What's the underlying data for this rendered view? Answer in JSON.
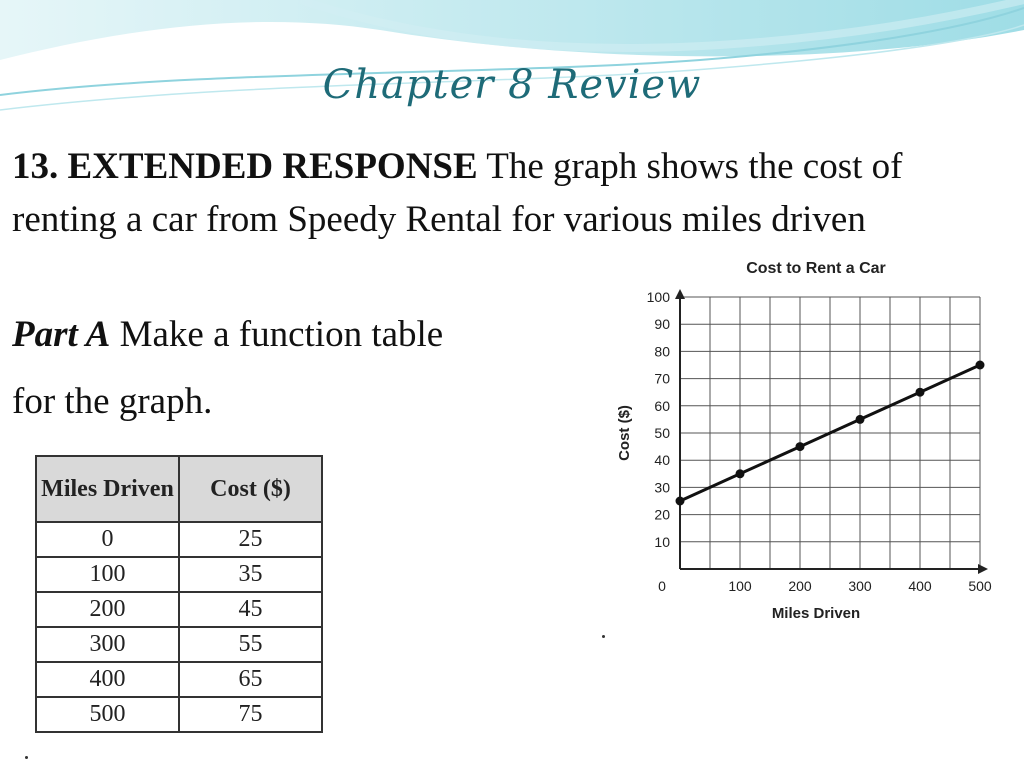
{
  "title": "Chapter 8 Review",
  "problem": {
    "number": "13.",
    "heading": "EXTENDED RESPONSE",
    "text": "The graph shows the cost of renting a car from Speedy Rental for various miles driven"
  },
  "part_a": {
    "label": "Part A",
    "line1": "Make a function table",
    "line2": "for the graph."
  },
  "table": {
    "headers": [
      "Miles Driven",
      "Cost ($)"
    ],
    "rows": [
      [
        "0",
        "25"
      ],
      [
        "100",
        "35"
      ],
      [
        "200",
        "45"
      ],
      [
        "300",
        "55"
      ],
      [
        "400",
        "65"
      ],
      [
        "500",
        "75"
      ]
    ]
  },
  "chart_data": {
    "type": "line",
    "title": "Cost to Rent a Car",
    "xlabel": "Miles Driven",
    "ylabel": "Cost ($)",
    "x": [
      0,
      100,
      200,
      300,
      400,
      500
    ],
    "y": [
      25,
      35,
      45,
      55,
      65,
      75
    ],
    "xlim": [
      0,
      500
    ],
    "ylim": [
      0,
      100
    ],
    "x_ticks": [
      "0",
      "100",
      "200",
      "300",
      "400",
      "500"
    ],
    "y_ticks": [
      "10",
      "20",
      "30",
      "40",
      "50",
      "60",
      "70",
      "80",
      "90",
      "100"
    ],
    "grid": true
  }
}
